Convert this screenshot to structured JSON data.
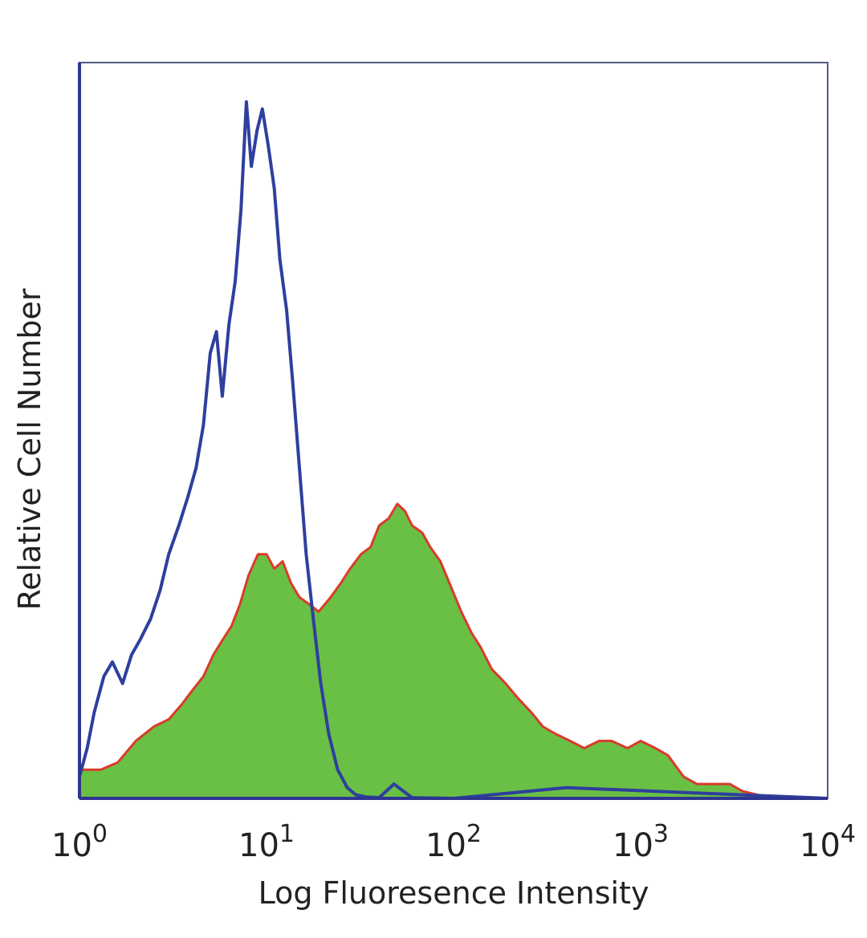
{
  "chart_data": {
    "type": "area",
    "title": "",
    "xlabel": "Log Fluoresence Intensity",
    "ylabel": "Relative Cell Number",
    "x_scale": "log",
    "xlim": [
      1,
      10000
    ],
    "ylim": [
      0,
      1
    ],
    "grid": false,
    "x_ticks": [
      {
        "value": 1,
        "base": "10",
        "exp": "0"
      },
      {
        "value": 10,
        "base": "10",
        "exp": "1"
      },
      {
        "value": 100,
        "base": "10",
        "exp": "2"
      },
      {
        "value": 1000,
        "base": "10",
        "exp": "3"
      },
      {
        "value": 10000,
        "base": "10",
        "exp": "4"
      }
    ],
    "series": [
      {
        "style": "outline",
        "color": "#2e3f9e",
        "x": [
          1,
          1.1,
          1.2,
          1.35,
          1.5,
          1.7,
          1.9,
          2.1,
          2.4,
          2.7,
          3.0,
          3.4,
          3.8,
          4.2,
          4.6,
          5.0,
          5.4,
          5.8,
          6.3,
          6.8,
          7.3,
          7.8,
          8.3,
          8.9,
          9.5,
          10.2,
          11.0,
          11.8,
          12.8,
          13.8,
          15.0,
          16.3,
          17.8,
          19.5,
          21.5,
          24,
          27,
          30,
          34,
          40,
          48,
          60,
          100,
          400,
          10000
        ],
        "y": [
          0.03,
          0.07,
          0.12,
          0.17,
          0.19,
          0.16,
          0.2,
          0.22,
          0.25,
          0.29,
          0.34,
          0.38,
          0.42,
          0.46,
          0.52,
          0.62,
          0.65,
          0.56,
          0.66,
          0.72,
          0.82,
          0.97,
          0.88,
          0.93,
          0.96,
          0.91,
          0.85,
          0.75,
          0.68,
          0.58,
          0.46,
          0.34,
          0.25,
          0.16,
          0.09,
          0.04,
          0.015,
          0.005,
          0.002,
          0.001,
          0.02,
          0.001,
          0.0,
          0.015,
          0.0
        ]
      },
      {
        "style": "filled",
        "color": "#6abf45",
        "edge_color": "#d93b2b",
        "x": [
          1,
          1.3,
          1.6,
          2.0,
          2.5,
          3.0,
          3.5,
          4.0,
          4.6,
          5.2,
          5.8,
          6.5,
          7.2,
          8.0,
          9.0,
          10.0,
          11.0,
          12.2,
          13.5,
          15,
          17,
          19,
          22,
          25,
          28,
          32,
          36,
          40,
          45,
          50,
          55,
          60,
          68,
          75,
          85,
          95,
          110,
          125,
          140,
          160,
          190,
          220,
          260,
          300,
          350,
          420,
          500,
          600,
          700,
          850,
          1000,
          1200,
          1400,
          1700,
          2000,
          2500,
          3000,
          3500,
          4200,
          5000
        ],
        "y": [
          0.04,
          0.04,
          0.05,
          0.08,
          0.1,
          0.11,
          0.13,
          0.15,
          0.17,
          0.2,
          0.22,
          0.24,
          0.27,
          0.31,
          0.34,
          0.34,
          0.32,
          0.33,
          0.3,
          0.28,
          0.27,
          0.26,
          0.28,
          0.3,
          0.32,
          0.34,
          0.35,
          0.38,
          0.39,
          0.41,
          0.4,
          0.38,
          0.37,
          0.35,
          0.33,
          0.3,
          0.26,
          0.23,
          0.21,
          0.18,
          0.16,
          0.14,
          0.12,
          0.1,
          0.09,
          0.08,
          0.07,
          0.08,
          0.08,
          0.07,
          0.08,
          0.07,
          0.06,
          0.03,
          0.02,
          0.02,
          0.02,
          0.01,
          0.005,
          0.0
        ]
      }
    ]
  }
}
